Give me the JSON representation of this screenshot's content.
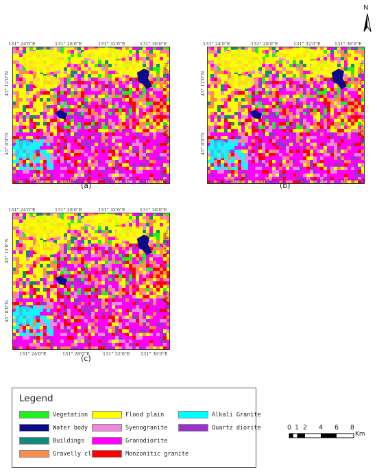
{
  "north_arrow": {
    "letter": "N"
  },
  "colors": {
    "vegetation": "#22ee22",
    "water_body": "#0a0a8a",
    "buildings": "#138a7a",
    "gravelly_clay": "#ff8a50",
    "flood_plain": "#ffff00",
    "syenogranite": "#ee88dd",
    "granodiorite": "#ff00ff",
    "monzonitic_granite": "#ff0000",
    "alkali_granite": "#00ffff",
    "quartz_diorite": "#9933cc"
  },
  "maps": [
    {
      "label": "(a)",
      "top_ticks": [
        "131° 24'0\"E",
        "131° 28'0\"E",
        "131° 32'0\"E",
        "131° 36'0\"E"
      ],
      "bottom_ticks": [
        "131° 24'0\"E",
        "131° 28'0\"E",
        "131° 32'0\"E",
        "131° 36'0\"E"
      ],
      "left_ticks": [
        "45° 12'0\"N",
        "45° 8'0\"N"
      ],
      "right_ticks": [
        "45° 12'0\"N",
        "45° 8'0\"N"
      ]
    },
    {
      "label": "(b)",
      "top_ticks": [
        "131° 24'0\"E",
        "131° 28'0\"E",
        "131° 32'0\"E",
        "131° 36'0\"E"
      ],
      "bottom_ticks": [
        "131° 24'0\"E",
        "131° 28'0\"E",
        "131° 32'0\"E",
        "131° 36'0\"E"
      ],
      "left_ticks": [
        "45° 12'0\"N",
        "45° 8'0\"N"
      ],
      "right_ticks": [
        "45° 12'0\"N",
        "45° 8'0\"N"
      ]
    },
    {
      "label": "(c)",
      "top_ticks": [
        "131° 24'0\"E",
        "131° 28'0\"E",
        "131° 32'0\"E",
        "131° 36'0\"E"
      ],
      "bottom_ticks": [
        "131° 24'0\"E",
        "131° 28'0\"E",
        "131° 32'0\"E",
        "131° 36'0\"E"
      ],
      "left_ticks": [
        "45° 12'0\"N",
        "45° 8'0\"N"
      ],
      "right_ticks": [
        "45° 12'0\"N",
        "45° 8'0\"N"
      ]
    }
  ],
  "legend": {
    "title": "Legend",
    "items": [
      {
        "label": "Vegetation",
        "color_key": "vegetation"
      },
      {
        "label": "Water body",
        "color_key": "water_body"
      },
      {
        "label": "Buildings",
        "color_key": "buildings"
      },
      {
        "label": "Gravelly clay",
        "color_key": "gravelly_clay"
      },
      {
        "label": "Flood plain",
        "color_key": "flood_plain"
      },
      {
        "label": "Syenogranite",
        "color_key": "syenogranite"
      },
      {
        "label": "Granodiorite",
        "color_key": "granodiorite"
      },
      {
        "label": "Monzonitic granite",
        "color_key": "monzonitic_granite"
      },
      {
        "label": "Alkali Granite",
        "color_key": "alkali_granite"
      },
      {
        "label": "Quartz diorite",
        "color_key": "quartz_diorite"
      }
    ]
  },
  "scale_bar": {
    "labels": [
      "0",
      "1",
      "2",
      "4",
      "6",
      "8"
    ],
    "unit": "Km"
  }
}
